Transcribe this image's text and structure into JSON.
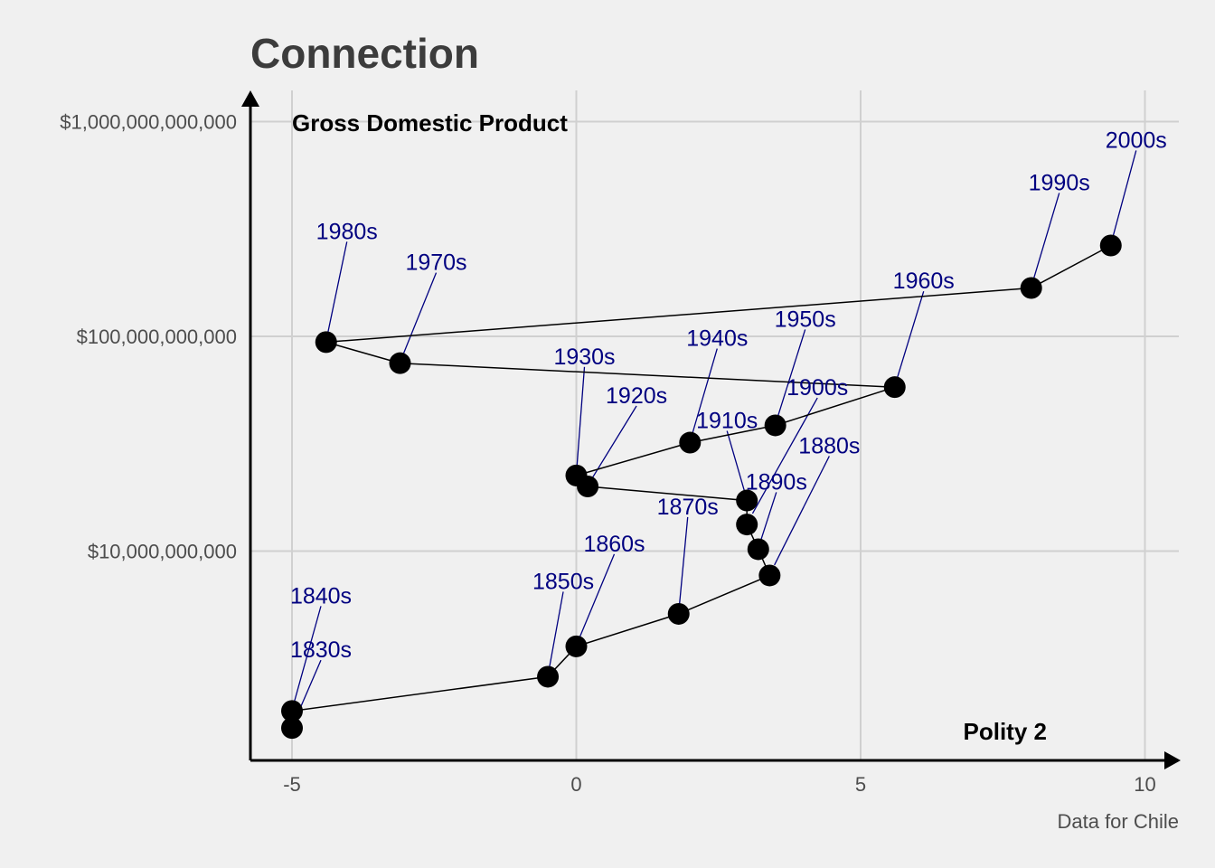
{
  "chart_data": {
    "type": "scatter",
    "title": "Connection",
    "ylabel": "Gross Domestic Product",
    "xlabel": "Polity 2",
    "caption": "Data for Chile",
    "x_scale": "linear",
    "y_scale": "log",
    "xlim": [
      -5.8,
      10.6
    ],
    "ylim": [
      1200000000,
      1500000000000
    ],
    "x_ticks": [
      {
        "value": -5,
        "label": "-5"
      },
      {
        "value": 0,
        "label": "0"
      },
      {
        "value": 5,
        "label": "5"
      },
      {
        "value": 10,
        "label": "10"
      }
    ],
    "y_ticks": [
      {
        "value": 10000000000,
        "label": "$10,000,000,000"
      },
      {
        "value": 100000000000,
        "label": "$100,000,000,000"
      },
      {
        "value": 1000000000000,
        "label": "$1,000,000,000,000"
      }
    ],
    "grid": true,
    "connected": true,
    "point_color": "#000000",
    "label_color": "#000080",
    "points": [
      {
        "label": "1830s",
        "x": -5,
        "y": 1500000000
      },
      {
        "label": "1840s",
        "x": -5,
        "y": 1800000000
      },
      {
        "label": "1850s",
        "x": -0.5,
        "y": 2600000000
      },
      {
        "label": "1860s",
        "x": 0,
        "y": 3600000000
      },
      {
        "label": "1870s",
        "x": 1.8,
        "y": 5100000000
      },
      {
        "label": "1880s",
        "x": 3.4,
        "y": 7700000000
      },
      {
        "label": "1890s",
        "x": 3.2,
        "y": 10200000000
      },
      {
        "label": "1900s",
        "x": 3,
        "y": 13300000000
      },
      {
        "label": "1910s",
        "x": 3,
        "y": 17200000000
      },
      {
        "label": "1920s",
        "x": 0.2,
        "y": 20000000000
      },
      {
        "label": "1930s",
        "x": 0,
        "y": 22500000000
      },
      {
        "label": "1940s",
        "x": 2,
        "y": 32000000000
      },
      {
        "label": "1950s",
        "x": 3.5,
        "y": 38500000000
      },
      {
        "label": "1960s",
        "x": 5.6,
        "y": 58000000000
      },
      {
        "label": "1970s",
        "x": -3.1,
        "y": 75000000000
      },
      {
        "label": "1980s",
        "x": -4.4,
        "y": 94000000000
      },
      {
        "label": "1990s",
        "x": 8,
        "y": 168000000000
      },
      {
        "label": "2000s",
        "x": 9.4,
        "y": 265000000000
      }
    ]
  }
}
